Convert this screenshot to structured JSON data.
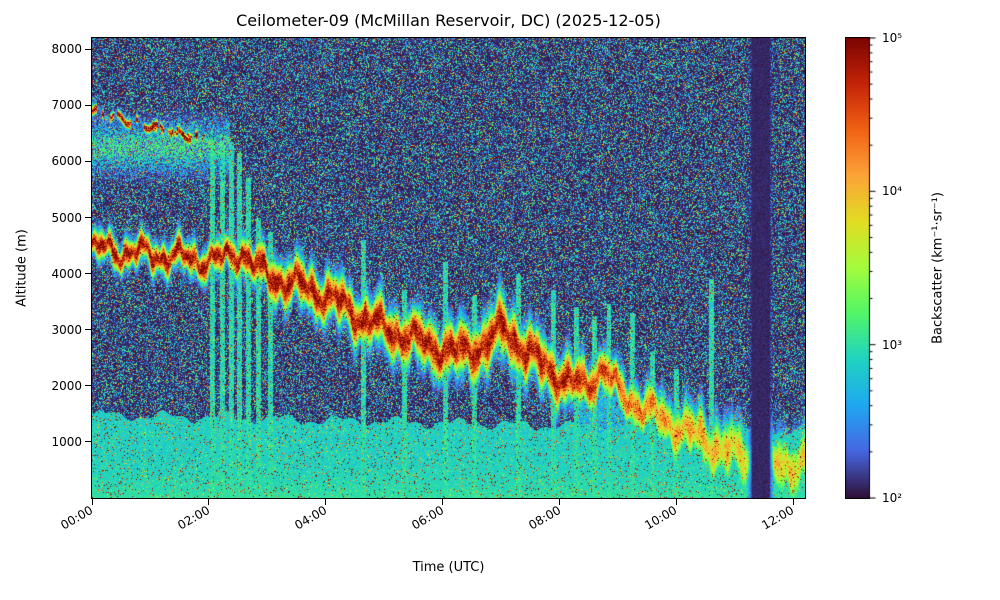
{
  "chart_data": {
    "type": "heatmap",
    "title": "Ceilometer-09 (McMillan Reservoir, DC) (2025-12-05)",
    "xlabel": "Time (UTC)",
    "ylabel": "Altitude (m)",
    "colorbar_label": "Backscatter (km⁻¹·sr⁻¹)",
    "x_range_hours": [
      0,
      12.2
    ],
    "y_range_m": [
      0,
      8200
    ],
    "x_ticks": [
      {
        "hour": 0,
        "label": "00:00"
      },
      {
        "hour": 2,
        "label": "02:00"
      },
      {
        "hour": 4,
        "label": "04:00"
      },
      {
        "hour": 6,
        "label": "06:00"
      },
      {
        "hour": 8,
        "label": "08:00"
      },
      {
        "hour": 10,
        "label": "10:00"
      },
      {
        "hour": 12,
        "label": "12:00"
      }
    ],
    "y_ticks": [
      {
        "alt": 1000,
        "label": "1000"
      },
      {
        "alt": 2000,
        "label": "2000"
      },
      {
        "alt": 3000,
        "label": "3000"
      },
      {
        "alt": 4000,
        "label": "4000"
      },
      {
        "alt": 5000,
        "label": "5000"
      },
      {
        "alt": 6000,
        "label": "6000"
      },
      {
        "alt": 7000,
        "label": "7000"
      },
      {
        "alt": 8000,
        "label": "8000"
      }
    ],
    "color_scale": {
      "type": "log",
      "min": 100,
      "max": 100000
    },
    "colorbar_ticks": [
      {
        "value": 100000,
        "label": "10⁵"
      },
      {
        "value": 10000,
        "label": "10⁴"
      },
      {
        "value": 1000,
        "label": "10³"
      },
      {
        "value": 100,
        "label": "10²"
      }
    ],
    "colormap": {
      "name": "turbo",
      "stops": [
        [
          0.0,
          "#30123b"
        ],
        [
          0.1,
          "#4667e3"
        ],
        [
          0.2,
          "#1fa8f1"
        ],
        [
          0.3,
          "#1fd3c1"
        ],
        [
          0.4,
          "#52f667"
        ],
        [
          0.5,
          "#a4fc3b"
        ],
        [
          0.6,
          "#e2dc22"
        ],
        [
          0.7,
          "#fca338"
        ],
        [
          0.8,
          "#f16114"
        ],
        [
          0.9,
          "#c42307"
        ],
        [
          1.0,
          "#7a0403"
        ]
      ]
    },
    "features": {
      "description": "Descending aerosol/cloud backscatter band from ~4450 m at 00:00 UTC to near surface by 12:00 UTC; elevated cloud layer ~6900 m before 01:45; shallow boundary layer ~1400 m; full-depth attenuated dark column ~11:17-11:37; speckle noise elsewhere.",
      "band_center_m": [
        [
          0,
          4450
        ],
        [
          0.6,
          4380
        ],
        [
          1.2,
          4330
        ],
        [
          1.7,
          4260
        ],
        [
          2.2,
          4230
        ],
        [
          2.55,
          4420
        ],
        [
          2.8,
          4100
        ],
        [
          3.1,
          3920
        ],
        [
          3.6,
          3780
        ],
        [
          4.1,
          3560
        ],
        [
          4.6,
          3220
        ],
        [
          5.1,
          2980
        ],
        [
          5.7,
          2760
        ],
        [
          6.2,
          2580
        ],
        [
          6.7,
          2700
        ],
        [
          7.05,
          3050
        ],
        [
          7.4,
          2620
        ],
        [
          7.8,
          2320
        ],
        [
          8.1,
          2080
        ],
        [
          8.45,
          1980
        ],
        [
          8.75,
          2330
        ],
        [
          9.0,
          1900
        ],
        [
          9.4,
          1620
        ],
        [
          9.8,
          1380
        ],
        [
          10.2,
          1170
        ],
        [
          10.6,
          960
        ],
        [
          11.0,
          780
        ],
        [
          11.4,
          620
        ],
        [
          11.8,
          560
        ],
        [
          12.2,
          650
        ]
      ],
      "band_width_m": [
        [
          0,
          210
        ],
        [
          2.4,
          240
        ],
        [
          3.0,
          320
        ],
        [
          4.0,
          340
        ],
        [
          5.0,
          360
        ],
        [
          6.0,
          380
        ],
        [
          7.0,
          420
        ],
        [
          8.0,
          380
        ],
        [
          9.0,
          310
        ],
        [
          9.8,
          360
        ],
        [
          10.5,
          440
        ],
        [
          11.2,
          470
        ],
        [
          12.2,
          480
        ]
      ],
      "band_peak_log10": [
        [
          0,
          5.1
        ],
        [
          2.0,
          5.05
        ],
        [
          3.0,
          5.1
        ],
        [
          5.0,
          5.0
        ],
        [
          7.0,
          5.05
        ],
        [
          8.2,
          4.95
        ],
        [
          8.8,
          4.75
        ],
        [
          9.3,
          4.5
        ],
        [
          9.9,
          4.3
        ],
        [
          10.6,
          4.15
        ],
        [
          11.2,
          4.0
        ],
        [
          11.8,
          4.05
        ],
        [
          12.2,
          4.0
        ]
      ],
      "boundary_layer": {
        "top_m_start": 1480,
        "slope_m_per_h": -25,
        "log10_value": 2.8
      },
      "high_layer": {
        "t_end_h": 1.85,
        "center_m_start": 6900,
        "slope_m_per_h": -270,
        "width_m": 80,
        "peak_log10": 5.0
      },
      "high_layer2": {
        "t_start_h": 1.0,
        "t_end_h": 1.9,
        "center_m_start": 6600,
        "slope_m_per_h": -220,
        "width_m": 60,
        "peak_log10": 4.8
      },
      "diffuse_green": {
        "t_end_h": 2.35,
        "center_m": 6250,
        "width_m": 430,
        "peak_log10": 3.15
      },
      "streaks": [
        [
          2.05,
          6400
        ],
        [
          2.22,
          6250
        ],
        [
          2.38,
          6350
        ],
        [
          2.52,
          6150
        ],
        [
          2.68,
          5700
        ],
        [
          2.85,
          5000
        ],
        [
          3.05,
          4750
        ],
        [
          4.65,
          4600
        ],
        [
          5.35,
          3700
        ],
        [
          6.05,
          4200
        ],
        [
          6.55,
          3600
        ],
        [
          7.3,
          4000
        ],
        [
          7.9,
          3700
        ],
        [
          8.3,
          3400
        ],
        [
          8.6,
          3250
        ],
        [
          8.85,
          3450
        ],
        [
          9.25,
          3300
        ],
        [
          9.6,
          2600
        ],
        [
          10.0,
          2300
        ],
        [
          10.6,
          3900
        ]
      ],
      "dark_column_hours": [
        11.28,
        11.62
      ],
      "noise": {
        "seed": 20251205,
        "density": 0.45
      }
    }
  }
}
